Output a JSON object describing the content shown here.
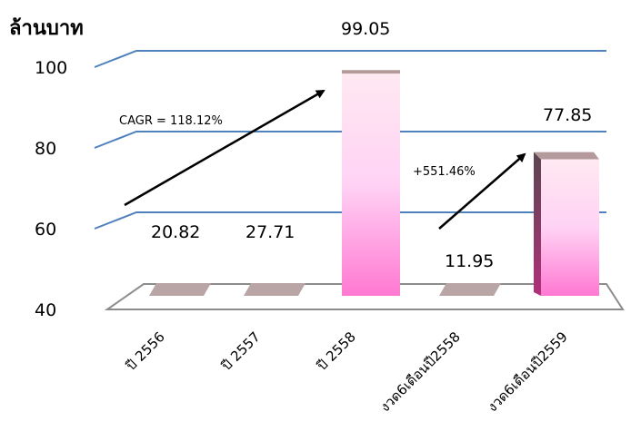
{
  "chart_data": {
    "type": "bar",
    "unit_label": "ล้านบาท",
    "categories": [
      "ปี 2556",
      "ปี 2557",
      "ปี 2558",
      "งวด6เดือนปี2558",
      "งวด6เดือนปี2559"
    ],
    "values": [
      20.82,
      27.71,
      99.05,
      11.95,
      77.85
    ],
    "data_labels": [
      "20.82",
      "27.71",
      "99.05",
      "11.95",
      "77.85"
    ],
    "y_ticks": [
      40,
      60,
      80,
      100
    ],
    "ylim": [
      40,
      100
    ],
    "grid": true,
    "annotations": [
      {
        "text": "CAGR = 118.12%"
      },
      {
        "text": "+551.46%"
      }
    ],
    "colors": {
      "grid": "#4f81bd",
      "floor_edge": "#8c8c8c",
      "low_bar": "#b9a5a5",
      "bar_top": "#ffe9f2",
      "bar_mid": "#ffd2f4",
      "bar_bottom": "#ff78d2",
      "bar_cap": "#b49a9a",
      "bar_side": "#5a4650"
    }
  }
}
